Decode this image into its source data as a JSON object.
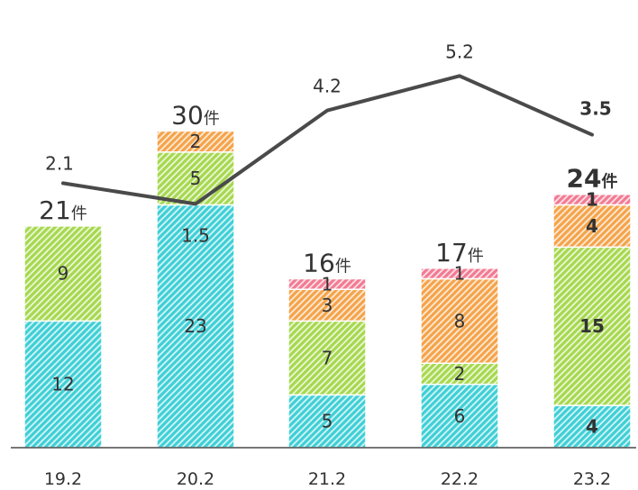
{
  "chart_data": {
    "type": "bar",
    "stacked": true,
    "categories": [
      "19.2",
      "20.2",
      "21.2",
      "22.2",
      "23.2"
    ],
    "series": [
      {
        "values": [
          12,
          23,
          5,
          6,
          4
        ],
        "value_labels": [
          "12",
          "23",
          "5",
          "6",
          "4"
        ],
        "color": "#3fcfd6"
      },
      {
        "values": [
          9,
          5,
          7,
          2,
          15
        ],
        "value_labels": [
          "9",
          "5",
          "7",
          "2",
          "15"
        ],
        "color": "#a6d84f"
      },
      {
        "values": [
          0,
          2,
          3,
          8,
          4
        ],
        "value_labels": [
          "",
          "2",
          "3",
          "8",
          "4"
        ],
        "color": "#f5a34a"
      },
      {
        "values": [
          0,
          0,
          1,
          1,
          1
        ],
        "value_labels": [
          "",
          "",
          "1",
          "1",
          "1"
        ],
        "color": "#f27a93"
      }
    ],
    "totals": [
      "21",
      "30",
      "16",
      "17",
      "24"
    ],
    "total_unit": "件",
    "line_series": {
      "values": [
        2.1,
        1.5,
        4.2,
        5.2,
        3.5
      ],
      "labels": [
        "2.1",
        "1.5",
        "4.2",
        "5.2",
        "3.5"
      ],
      "color": "#4a4a4a"
    },
    "emphasized_category": "23.2",
    "ylim": [
      0,
      31
    ],
    "grid": false,
    "legend": "none",
    "title": "",
    "xlabel": "",
    "ylabel": ""
  }
}
